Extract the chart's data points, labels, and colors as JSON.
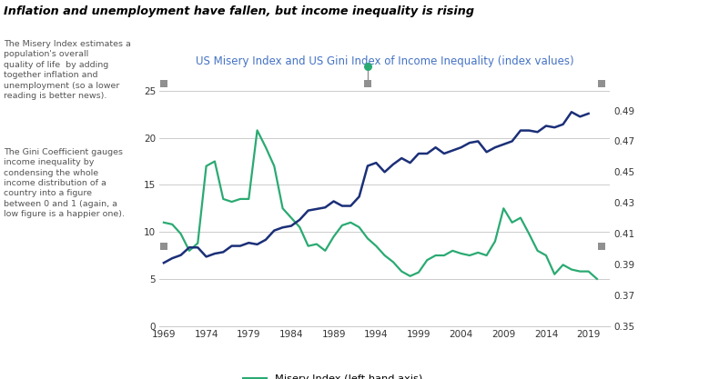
{
  "title": "Inflation and unemployment have fallen, but income inequality is rising",
  "subtitle": "US Misery Index and US Gini Index of Income Inequality (index values)",
  "left_text_para1": "The Misery Index estimates a\npopulation's overall\nquality of life  by adding\ntogether inflation and\nunemployment (so a lower\nreading is better news).",
  "left_text_para2": "The Gini Coefficient gauges\nincome inequality by\ncondensing the whole\nincome distribution of a\ncountry into a figure\nbetween 0 and 1 (again, a\nlow figure is a happier one).",
  "misery_color": "#2aaa72",
  "gini_color": "#1b2f78",
  "marker_color": "#909090",
  "ylim_left": [
    0,
    27
  ],
  "ylim_right": [
    0.35,
    0.515
  ],
  "xlim": [
    1968.5,
    2021.5
  ],
  "yticks_left": [
    0,
    5,
    10,
    15,
    20,
    25
  ],
  "yticks_right": [
    0.35,
    0.37,
    0.39,
    0.41,
    0.43,
    0.45,
    0.47,
    0.49
  ],
  "xticks": [
    1969,
    1974,
    1979,
    1984,
    1989,
    1994,
    1999,
    2004,
    2009,
    2014,
    2019
  ],
  "misery_x": [
    1969,
    1970,
    1971,
    1972,
    1973,
    1974,
    1975,
    1976,
    1977,
    1978,
    1979,
    1980,
    1981,
    1982,
    1983,
    1984,
    1985,
    1986,
    1987,
    1988,
    1989,
    1990,
    1991,
    1992,
    1993,
    1994,
    1995,
    1996,
    1997,
    1998,
    1999,
    2000,
    2001,
    2002,
    2003,
    2004,
    2005,
    2006,
    2007,
    2008,
    2009,
    2010,
    2011,
    2012,
    2013,
    2014,
    2015,
    2016,
    2017,
    2018,
    2019,
    2020
  ],
  "misery_y": [
    11.0,
    10.8,
    9.8,
    8.0,
    8.8,
    17.0,
    17.5,
    13.5,
    13.2,
    13.5,
    13.5,
    20.8,
    19.0,
    17.0,
    12.5,
    11.5,
    10.5,
    8.5,
    8.7,
    8.0,
    9.5,
    10.7,
    11.0,
    10.5,
    9.3,
    8.5,
    7.5,
    6.8,
    5.8,
    5.3,
    5.7,
    7.0,
    7.5,
    7.5,
    8.0,
    7.7,
    7.5,
    7.8,
    7.5,
    9.0,
    12.5,
    11.0,
    11.5,
    9.8,
    8.0,
    7.5,
    5.5,
    6.5,
    6.0,
    5.8,
    5.8,
    5.0
  ],
  "gini_x": [
    1969,
    1970,
    1971,
    1972,
    1973,
    1974,
    1975,
    1976,
    1977,
    1978,
    1979,
    1980,
    1981,
    1982,
    1983,
    1984,
    1985,
    1986,
    1987,
    1988,
    1989,
    1990,
    1991,
    1992,
    1993,
    1994,
    1995,
    1996,
    1997,
    1998,
    1999,
    2000,
    2001,
    2002,
    2003,
    2004,
    2005,
    2006,
    2007,
    2008,
    2009,
    2010,
    2011,
    2012,
    2013,
    2014,
    2015,
    2016,
    2017,
    2018,
    2019
  ],
  "gini_y": [
    0.391,
    0.394,
    0.396,
    0.401,
    0.401,
    0.395,
    0.397,
    0.398,
    0.402,
    0.402,
    0.404,
    0.403,
    0.406,
    0.412,
    0.414,
    0.415,
    0.419,
    0.425,
    0.426,
    0.427,
    0.431,
    0.428,
    0.428,
    0.434,
    0.454,
    0.456,
    0.45,
    0.455,
    0.459,
    0.456,
    0.462,
    0.462,
    0.466,
    0.462,
    0.464,
    0.466,
    0.469,
    0.47,
    0.463,
    0.466,
    0.468,
    0.47,
    0.477,
    0.477,
    0.476,
    0.48,
    0.479,
    0.481,
    0.489,
    0.486,
    0.488
  ],
  "bg_color": "#ffffff",
  "grid_color": "#cccccc",
  "title_color": "#000000",
  "subtitle_color": "#4472c4",
  "text_color": "#555555"
}
